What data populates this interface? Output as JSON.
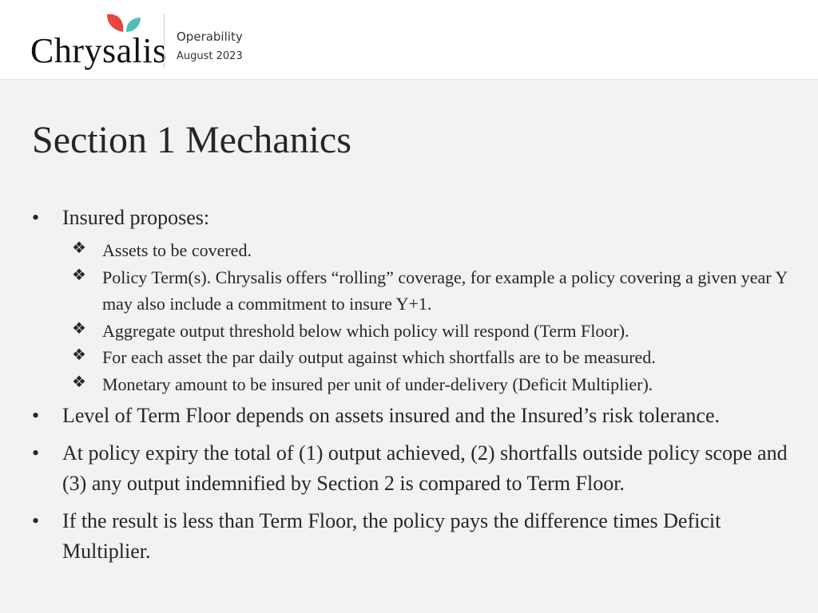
{
  "header": {
    "logo_text": "Chrysalis",
    "logo_colors": {
      "left_leaf": "#e8453c",
      "right_leaf": "#4dbfb8"
    },
    "title": "Operability",
    "date": "August 2023"
  },
  "slide": {
    "title": "Section 1 Mechanics",
    "bullets": [
      {
        "text": "Insured proposes:",
        "sub": [
          "Assets to be covered.",
          "Policy Term(s). Chrysalis offers “rolling” coverage, for example a policy covering a given year Y may also include a commitment to insure Y+1.",
          "Aggregate output threshold below which policy will respond (Term Floor).",
          "For each asset the par daily output against which shortfalls are to be measured.",
          "Monetary amount to be insured per unit of under-delivery (Deficit Multiplier)."
        ]
      },
      {
        "text": "Level of Term Floor depends on assets insured and the Insured’s risk tolerance."
      },
      {
        "text": "At policy expiry the total of (1) output achieved, (2) shortfalls outside policy scope and (3) any output indemnified by Section 2 is compared to Term Floor."
      },
      {
        "text": "If the result is less than Term Floor, the policy pays the difference times Deficit Multiplier."
      }
    ],
    "bullet_glyph": "•",
    "sub_bullet_glyph": "❖"
  }
}
